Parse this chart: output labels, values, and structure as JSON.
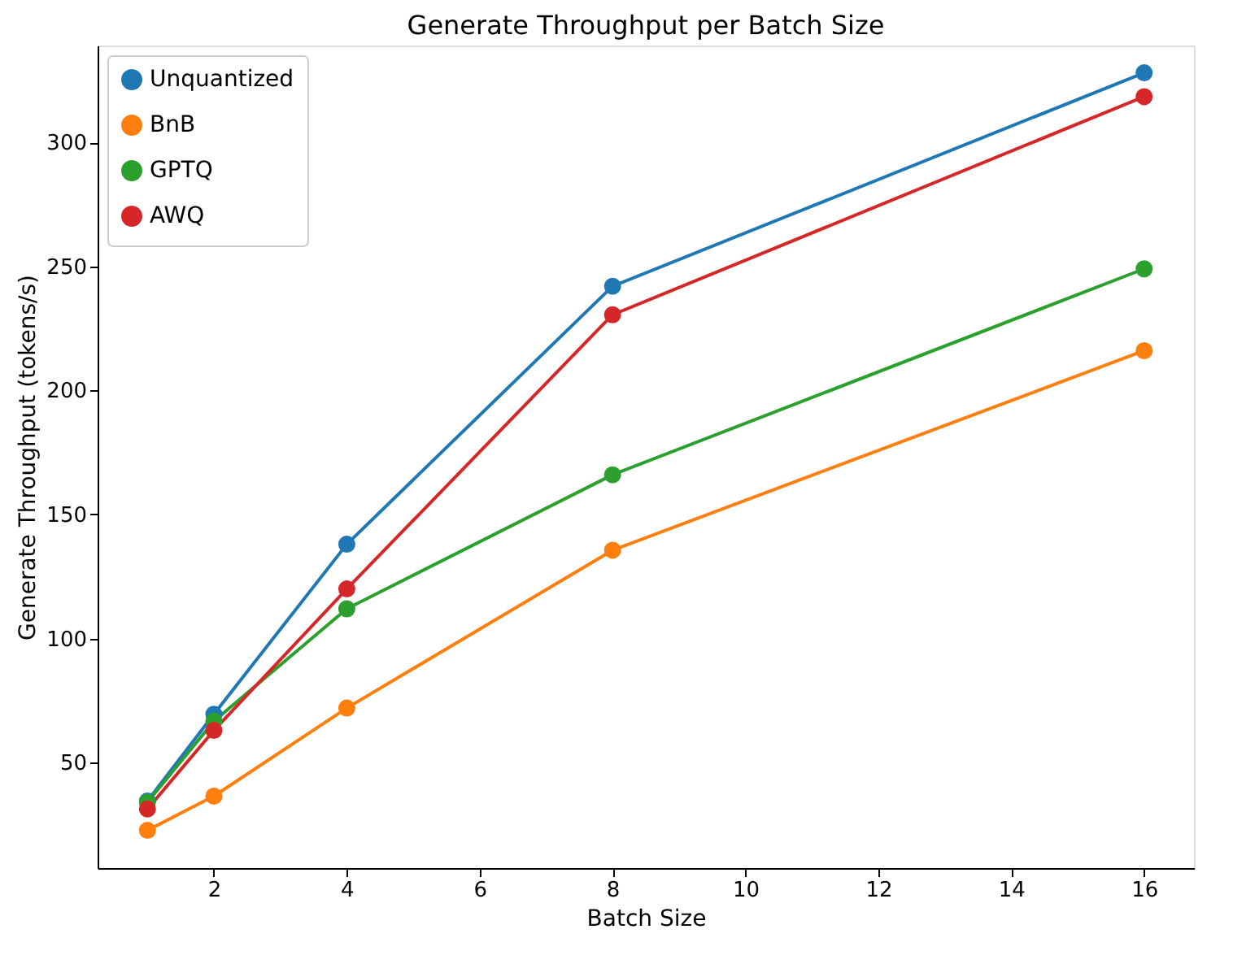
{
  "chart_data": {
    "type": "line",
    "title": "Generate Throughput per Batch Size",
    "xlabel": "Batch Size",
    "ylabel": "Generate Throughput (tokens/s)",
    "x": [
      1,
      2,
      4,
      8,
      16
    ],
    "series": [
      {
        "name": "Unquantized",
        "color": "#1f77b4",
        "values": [
          34.5,
          69.5,
          138,
          242,
          328
        ]
      },
      {
        "name": "BnB",
        "color": "#ff7f0e",
        "values": [
          22.7,
          36.5,
          72,
          135.6,
          216
        ]
      },
      {
        "name": "GPTQ",
        "color": "#2ca02c",
        "values": [
          34,
          66.7,
          112,
          166,
          249
        ]
      },
      {
        "name": "AWQ",
        "color": "#d62728",
        "values": [
          31.3,
          63,
          120,
          230.5,
          318.4
        ]
      }
    ],
    "xlim": [
      0.25,
      16.75
    ],
    "xticks": [
      2,
      4,
      6,
      8,
      10,
      12,
      14,
      16
    ],
    "ylim": [
      7.5,
      339
    ],
    "yticks": [
      50,
      100,
      150,
      200,
      250,
      300
    ],
    "grid": false,
    "legend": "top left",
    "marker": "circle",
    "line_style": "solid"
  }
}
